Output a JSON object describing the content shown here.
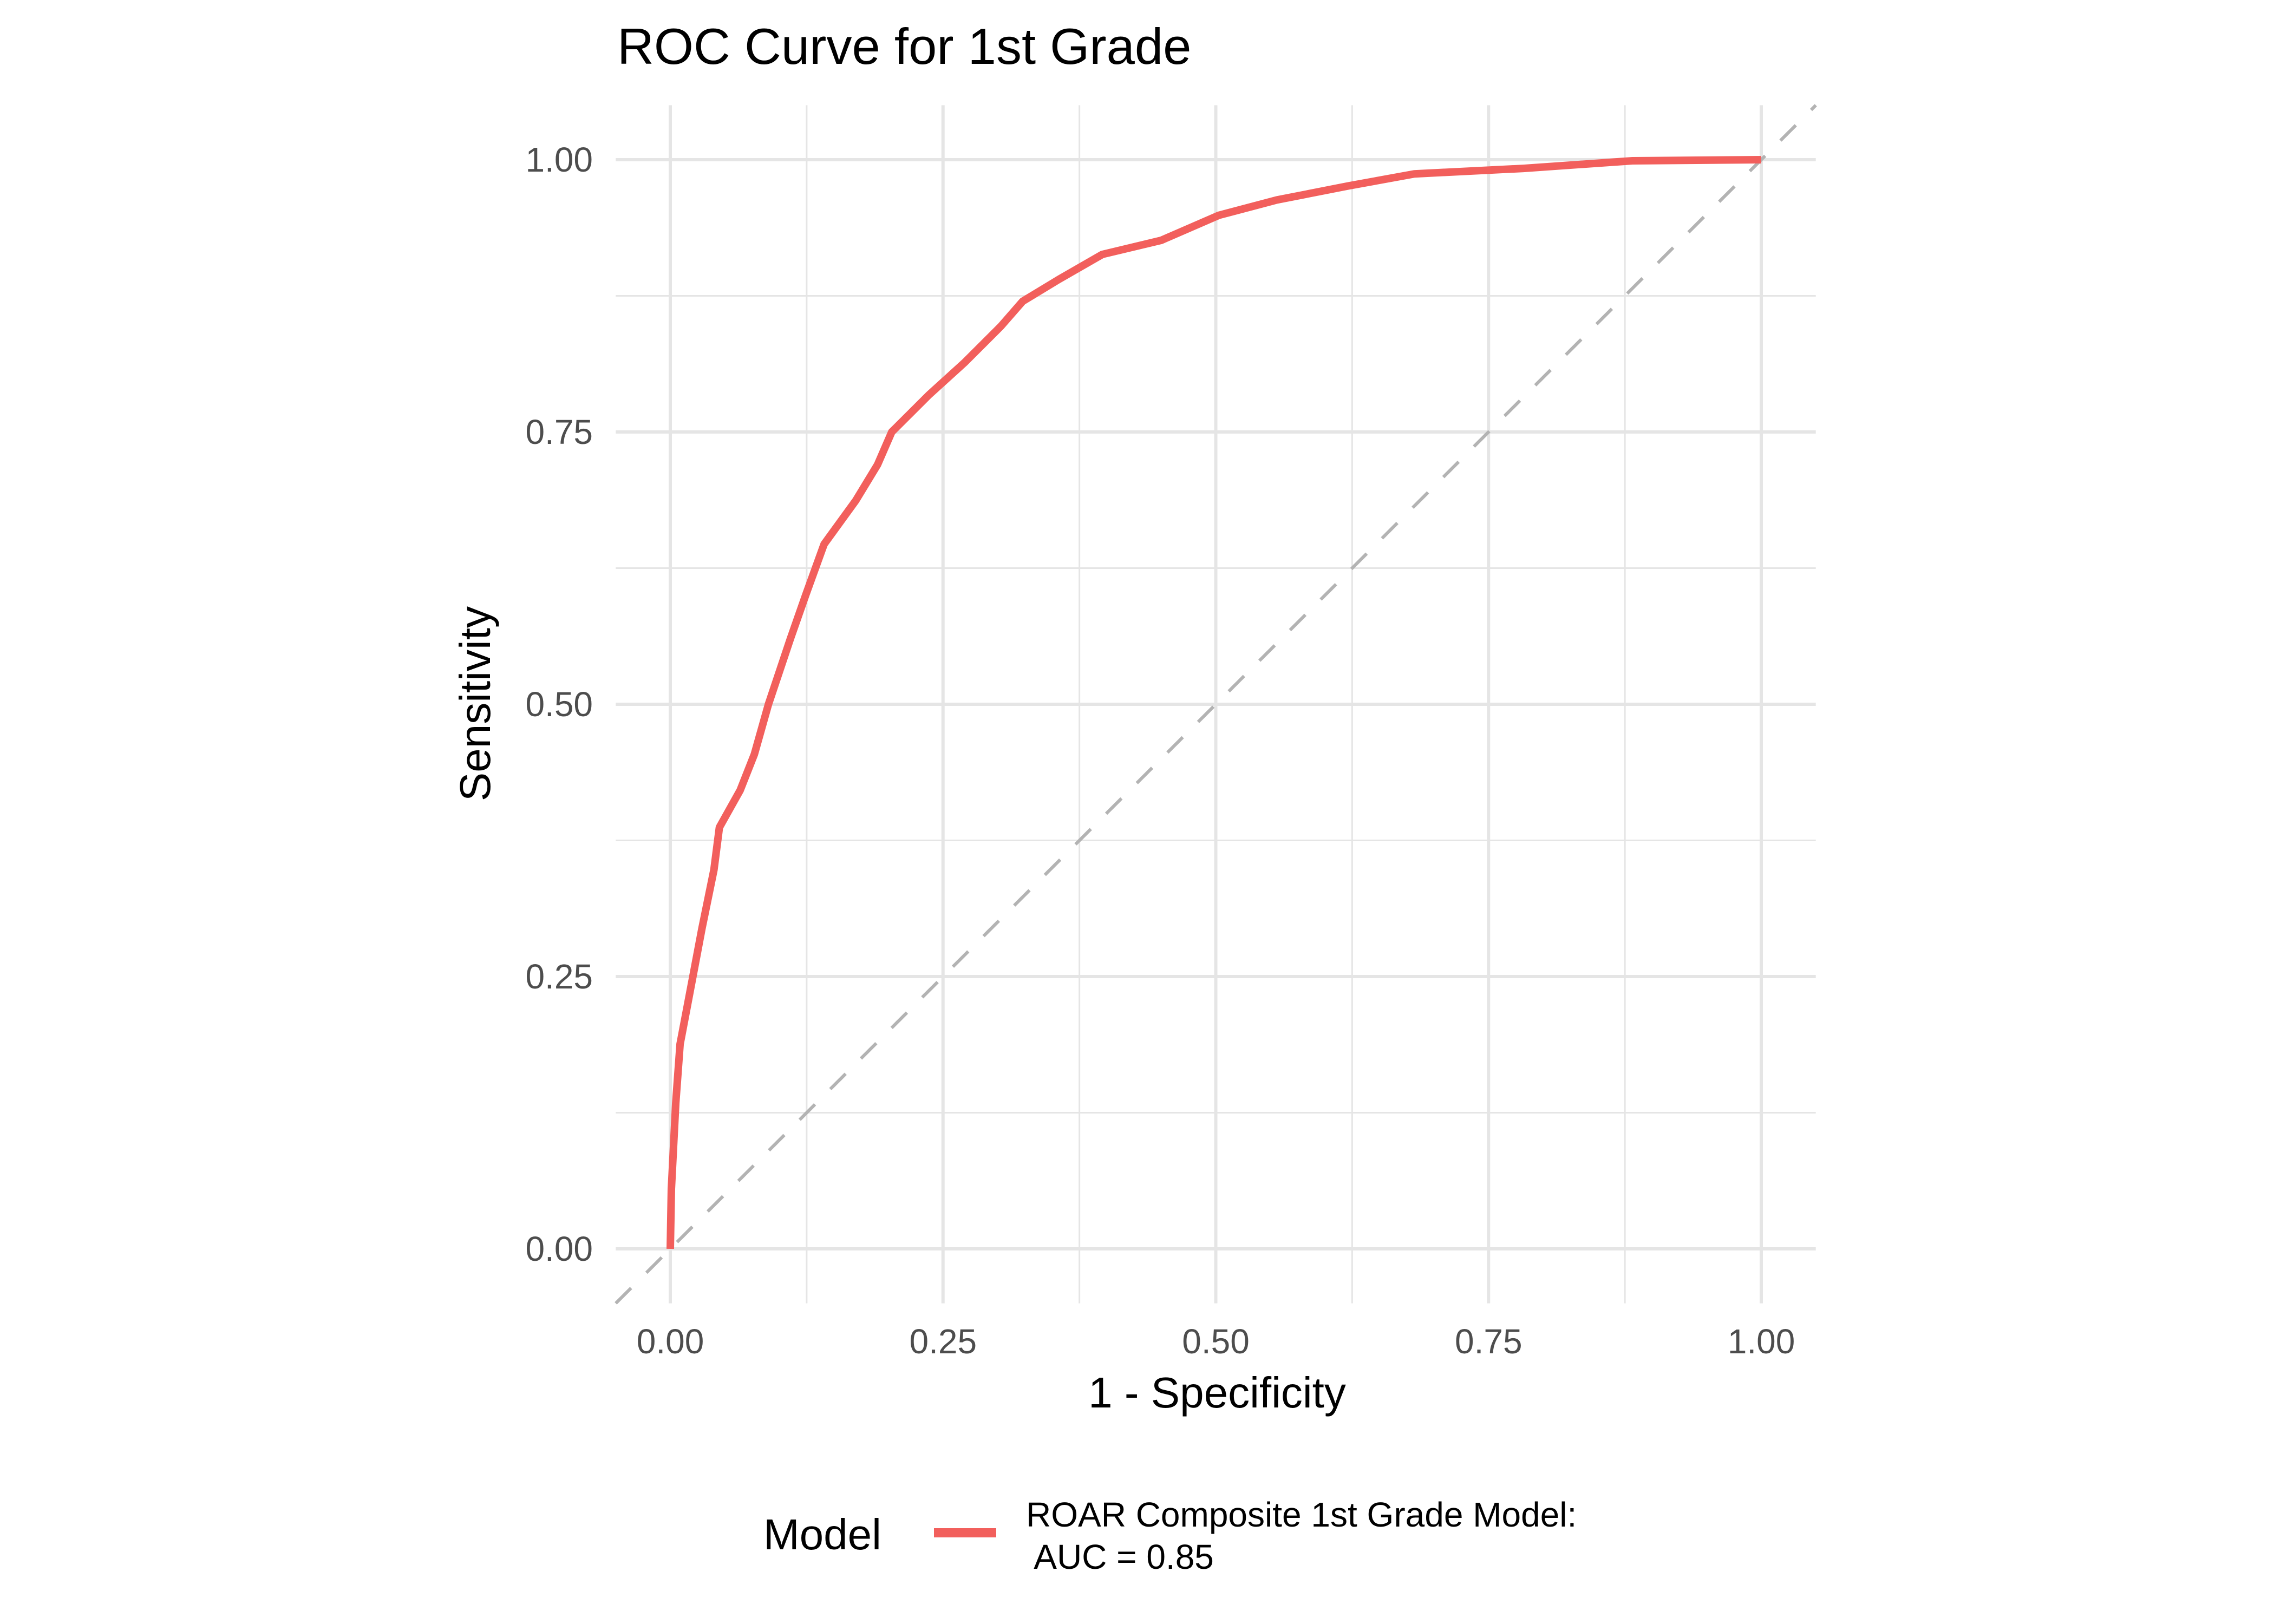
{
  "chart_data": {
    "type": "line",
    "title": "ROC Curve for 1st Grade",
    "xlabel": "1 - Specificity",
    "ylabel": "Sensitivity",
    "xlim": [
      -0.05,
      1.05
    ],
    "ylim": [
      -0.05,
      1.05
    ],
    "xticks": [
      0,
      0.25,
      0.5,
      0.75,
      1
    ],
    "xtick_labels": [
      "0.00",
      "0.25",
      "0.50",
      "0.75",
      "1.00"
    ],
    "yticks": [
      0,
      0.25,
      0.5,
      0.75,
      1
    ],
    "ytick_labels": [
      "0.00",
      "0.25",
      "0.50",
      "0.75",
      "1.00"
    ],
    "grid": true,
    "legend": {
      "title": "Model",
      "position": "bottom",
      "entries": [
        "ROAR Composite 1st Grade Model:",
        " AUC = 0.85"
      ]
    },
    "series": [
      {
        "name": "ROAR Composite 1st Grade Model: AUC = 0.85",
        "color": "#F25F5C",
        "x": [
          0,
          0.001,
          0.005,
          0.009,
          0.019,
          0.029,
          0.04,
          0.045,
          0.064,
          0.077,
          0.09,
          0.11,
          0.124,
          0.141,
          0.17,
          0.19,
          0.203,
          0.237,
          0.27,
          0.303,
          0.323,
          0.356,
          0.396,
          0.45,
          0.503,
          0.556,
          0.622,
          0.682,
          0.782,
          0.882,
          1.0
        ],
        "y": [
          0,
          0.055,
          0.134,
          0.188,
          0.241,
          0.294,
          0.348,
          0.387,
          0.421,
          0.454,
          0.5,
          0.56,
          0.6,
          0.647,
          0.687,
          0.72,
          0.75,
          0.784,
          0.814,
          0.847,
          0.87,
          0.89,
          0.913,
          0.926,
          0.949,
          0.963,
          0.976,
          0.987,
          0.992,
          0.999,
          1.0
        ]
      },
      {
        "name": "reference diagonal",
        "style": "dashed",
        "color": "#B3B3B3",
        "x": [
          -0.05,
          1.05
        ],
        "y": [
          -0.05,
          1.05
        ]
      }
    ]
  },
  "colors": {
    "curve": "#F25F5C",
    "diagonal": "#B3B3B3",
    "grid": "#E5E5E5"
  }
}
